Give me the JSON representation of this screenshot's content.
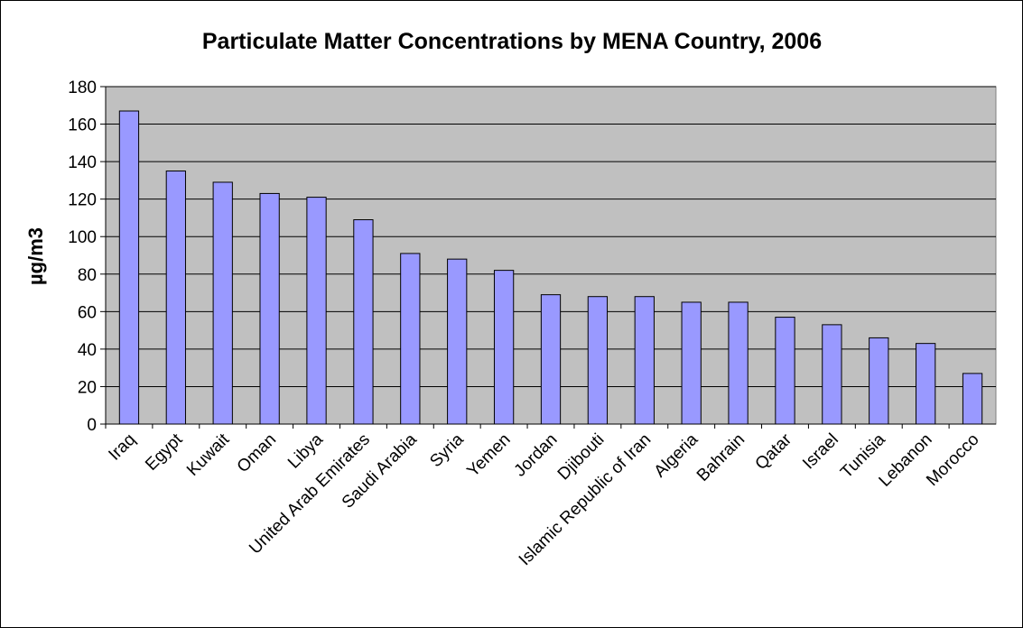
{
  "chart_data": {
    "type": "bar",
    "title": "Particulate Matter Concentrations by MENA Country, 2006",
    "xlabel": "",
    "ylabel": "µg/m3",
    "ylim": [
      0,
      180
    ],
    "yticks": [
      0,
      20,
      40,
      60,
      80,
      100,
      120,
      140,
      160,
      180
    ],
    "grid": true,
    "legend": "none",
    "categories": [
      "Iraq",
      "Egypt",
      "Kuwait",
      "Oman",
      "Libya",
      "United Arab Emirates",
      "Saudi Arabia",
      "Syria",
      "Yemen",
      "Jordan",
      "Djibouti",
      "Islamic Republic of Iran",
      "Algeria",
      "Bahrain",
      "Qatar",
      "Israel",
      "Tunisia",
      "Lebanon",
      "Morocco"
    ],
    "values": [
      167,
      135,
      129,
      123,
      121,
      109,
      91,
      88,
      82,
      69,
      68,
      68,
      65,
      65,
      57,
      53,
      46,
      43,
      27
    ],
    "colors": {
      "bar_fill": "#9999ff",
      "bar_stroke": "#000000",
      "plot_bg": "#c0c0c0",
      "gridline": "#000000"
    }
  }
}
